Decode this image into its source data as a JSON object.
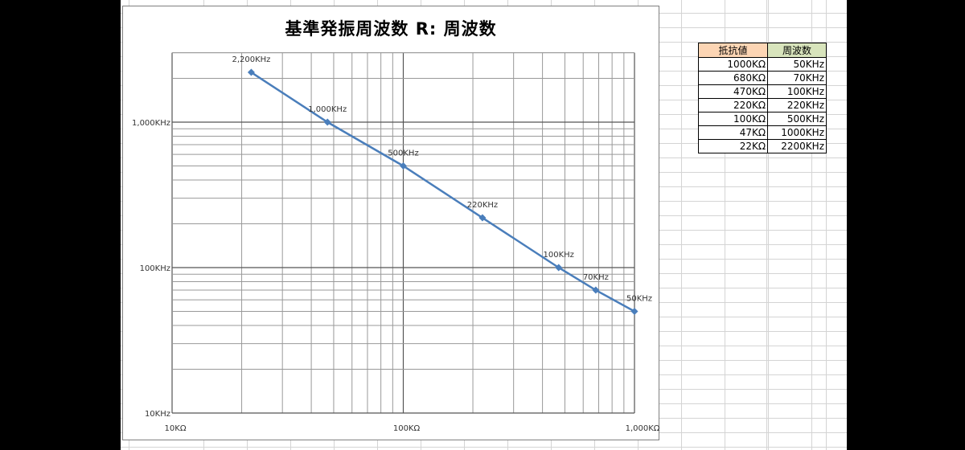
{
  "colors": {
    "series": "#4a7ebb",
    "header_resistance_bg": "#fcd5b4",
    "header_frequency_bg": "#d8e4bc",
    "background": "#000000"
  },
  "chart_data": {
    "type": "line",
    "title": "基準発振周波数 R: 周波数",
    "x_scale": "log",
    "y_scale": "log",
    "xlim": [
      10,
      1000
    ],
    "ylim": [
      10,
      3000
    ],
    "x_tick_labels": [
      "10KΩ",
      "100KΩ",
      "1,000KΩ"
    ],
    "x_ticks": [
      10,
      100,
      1000
    ],
    "y_tick_labels": [
      "10KHz",
      "100KHz",
      "1,000KHz"
    ],
    "y_ticks": [
      10,
      100,
      1000
    ],
    "grid": true,
    "series": [
      {
        "x": [
          22,
          47,
          100,
          220,
          470,
          680,
          1000
        ],
        "y": [
          2200,
          1000,
          500,
          220,
          100,
          70,
          50
        ],
        "data_labels": [
          "2,200KHz",
          "1,000KHz",
          "500KHz",
          "220KHz",
          "100KHz",
          "70KHz",
          "50KHz"
        ],
        "marker": "diamond"
      }
    ]
  },
  "table": {
    "headers": [
      "抵抗値",
      "周波数"
    ],
    "rows": [
      [
        "1000KΩ",
        "50KHz"
      ],
      [
        "680KΩ",
        "70KHz"
      ],
      [
        "470KΩ",
        "100KHz"
      ],
      [
        "220KΩ",
        "220KHz"
      ],
      [
        "100KΩ",
        "500KHz"
      ],
      [
        "47KΩ",
        "1000KHz"
      ],
      [
        "22KΩ",
        "2200KHz"
      ]
    ]
  }
}
